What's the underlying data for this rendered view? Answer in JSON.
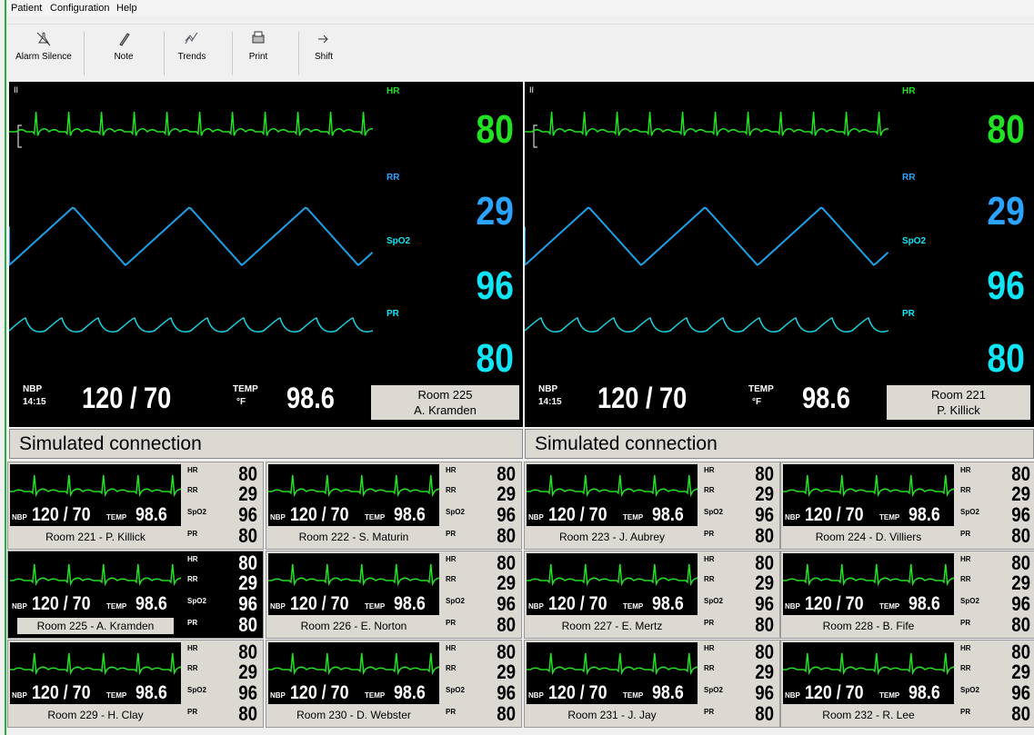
{
  "menu": [
    "Patient",
    "Configuration",
    "Help"
  ],
  "toolbar": [
    "Alarm Silence",
    "Note",
    "Trends",
    "Print",
    "Shift"
  ],
  "main_panels": [
    {
      "lead": "II",
      "hr_label": "HR",
      "hr": 80,
      "rr_label": "RR",
      "rr": 29,
      "spo2_label": "SpO2",
      "spo2": 96,
      "pr_label": "PR",
      "pr": 80,
      "nbp_label": "NBP",
      "nbp_time": "14:15",
      "nbp": "120 / 70",
      "temp_label": "TEMP",
      "temp_unit": "°F",
      "temp": 98.6,
      "room": "Room 225",
      "patient": "A. Kramden",
      "status": "Simulated connection"
    },
    {
      "lead": "II",
      "hr_label": "HR",
      "hr": 80,
      "rr_label": "RR",
      "rr": 29,
      "spo2_label": "SpO2",
      "spo2": 96,
      "pr_label": "PR",
      "pr": 80,
      "nbp_label": "NBP",
      "nbp_time": "14:15",
      "nbp": "120 / 70",
      "temp_label": "TEMP",
      "temp_unit": "°F",
      "temp": 98.6,
      "room": "Room 221",
      "patient": "P. Killick",
      "status": "Simulated connection"
    }
  ],
  "tiles": [
    {
      "room": "Room 221 - P. Killick",
      "hr_label": "HR",
      "hr": 80,
      "rr_label": "RR",
      "rr": 29,
      "spo2_label": "SpO2",
      "spo2": 96,
      "pr_label": "PR",
      "pr": 80,
      "nbp_label": "NBP",
      "nbp": "120 / 70",
      "temp_label": "TEMP",
      "temp": 98.6
    },
    {
      "room": "Room 222 - S. Maturin",
      "hr_label": "HR",
      "hr": 80,
      "rr_label": "RR",
      "rr": 29,
      "spo2_label": "SpO2",
      "spo2": 96,
      "pr_label": "PR",
      "pr": 80,
      "nbp_label": "NBP",
      "nbp": "120 / 70",
      "temp_label": "TEMP",
      "temp": 98.6
    },
    {
      "room": "Room 223 - J. Aubrey",
      "hr_label": "HR",
      "hr": 80,
      "rr_label": "RR",
      "rr": 29,
      "spo2_label": "SpO2",
      "spo2": 96,
      "pr_label": "PR",
      "pr": 80,
      "nbp_label": "NBP",
      "nbp": "120 / 70",
      "temp_label": "TEMP",
      "temp": 98.6
    },
    {
      "room": "Room 224 - D. Villiers",
      "hr_label": "HR",
      "hr": 80,
      "rr_label": "RR",
      "rr": 29,
      "spo2_label": "SpO2",
      "spo2": 96,
      "pr_label": "PR",
      "pr": 80,
      "nbp_label": "NBP",
      "nbp": "120 / 70",
      "temp_label": "TEMP",
      "temp": 98.6
    },
    {
      "room": "Room 225 - A. Kramden",
      "selected": true,
      "hr_label": "HR",
      "hr": 80,
      "rr_label": "RR",
      "rr": 29,
      "spo2_label": "SpO2",
      "spo2": 96,
      "pr_label": "PR",
      "pr": 80,
      "nbp_label": "NBP",
      "nbp": "120 / 70",
      "temp_label": "TEMP",
      "temp": 98.6
    },
    {
      "room": "Room 226 - E. Norton",
      "hr_label": "HR",
      "hr": 80,
      "rr_label": "RR",
      "rr": 29,
      "spo2_label": "SpO2",
      "spo2": 96,
      "pr_label": "PR",
      "pr": 80,
      "nbp_label": "NBP",
      "nbp": "120 / 70",
      "temp_label": "TEMP",
      "temp": 98.6
    },
    {
      "room": "Room 227 - E. Mertz",
      "hr_label": "HR",
      "hr": 80,
      "rr_label": "RR",
      "rr": 29,
      "spo2_label": "SpO2",
      "spo2": 96,
      "pr_label": "PR",
      "pr": 80,
      "nbp_label": "NBP",
      "nbp": "120 / 70",
      "temp_label": "TEMP",
      "temp": 98.6
    },
    {
      "room": "Room 228 - B. Fife",
      "hr_label": "HR",
      "hr": 80,
      "rr_label": "RR",
      "rr": 29,
      "spo2_label": "SpO2",
      "spo2": 96,
      "pr_label": "PR",
      "pr": 80,
      "nbp_label": "NBP",
      "nbp": "120 / 70",
      "temp_label": "TEMP",
      "temp": 98.6
    },
    {
      "room": "Room 229 - H. Clay",
      "hr_label": "HR",
      "hr": 80,
      "rr_label": "RR",
      "rr": 29,
      "spo2_label": "SpO2",
      "spo2": 96,
      "pr_label": "PR",
      "pr": 80,
      "nbp_label": "NBP",
      "nbp": "120 / 70",
      "temp_label": "TEMP",
      "temp": 98.6
    },
    {
      "room": "Room 230 - D. Webster",
      "hr_label": "HR",
      "hr": 80,
      "rr_label": "RR",
      "rr": 29,
      "spo2_label": "SpO2",
      "spo2": 96,
      "pr_label": "PR",
      "pr": 80,
      "nbp_label": "NBP",
      "nbp": "120 / 70",
      "temp_label": "TEMP",
      "temp": 98.6
    },
    {
      "room": "Room 231 - J. Jay",
      "hr_label": "HR",
      "hr": 80,
      "rr_label": "RR",
      "rr": 29,
      "spo2_label": "SpO2",
      "spo2": 96,
      "pr_label": "PR",
      "pr": 80,
      "nbp_label": "NBP",
      "nbp": "120 / 70",
      "temp_label": "TEMP",
      "temp": 98.6
    },
    {
      "room": "Room 232 - R. Lee",
      "hr_label": "HR",
      "hr": 80,
      "rr_label": "RR",
      "rr": 29,
      "spo2_label": "SpO2",
      "spo2": 96,
      "pr_label": "PR",
      "pr": 80,
      "nbp_label": "NBP",
      "nbp": "120 / 70",
      "temp_label": "TEMP",
      "temp": 98.6
    }
  ]
}
